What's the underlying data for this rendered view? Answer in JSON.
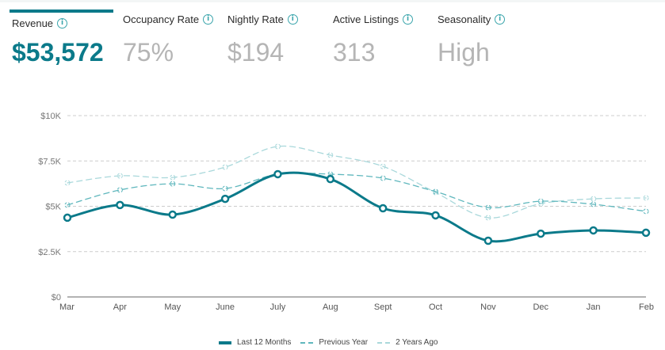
{
  "kpis": [
    {
      "label": "Revenue",
      "value": "$53,572",
      "active": true
    },
    {
      "label": "Occupancy Rate",
      "value": "75%",
      "active": false
    },
    {
      "label": "Nightly Rate",
      "value": "$194",
      "active": false
    },
    {
      "label": "Active Listings",
      "value": "313",
      "active": false
    },
    {
      "label": "Seasonality",
      "value": "High",
      "active": false
    }
  ],
  "info_icon": "info-circle-icon",
  "colors": {
    "accent": "#0b7a8a",
    "prev": "#5fb7bd",
    "two": "#a9d8db",
    "grid": "#cccccc",
    "muted": "#b5b5b5"
  },
  "chart_data": {
    "type": "line",
    "categories": [
      "Mar",
      "Apr",
      "May",
      "June",
      "July",
      "Aug",
      "Sept",
      "Oct",
      "Nov",
      "Dec",
      "Jan",
      "Feb"
    ],
    "y_ticks": [
      "$0",
      "$2.5K",
      "$5K",
      "$7.5K",
      "$10K"
    ],
    "y_tick_values": [
      0,
      2500,
      5000,
      7500,
      10000
    ],
    "ylim": [
      0,
      10000
    ],
    "grid": true,
    "legend_position": "bottom",
    "series": [
      {
        "name": "Last 12 Months",
        "values": [
          4370,
          5070,
          4540,
          5410,
          6770,
          6500,
          4890,
          4500,
          3100,
          3490,
          3670,
          3540
        ]
      },
      {
        "name": "Previous Year",
        "values": [
          5070,
          5900,
          6240,
          5980,
          6770,
          6770,
          6550,
          5810,
          4930,
          5280,
          5110,
          4720
        ]
      },
      {
        "name": "2 Years Ago",
        "values": [
          6290,
          6680,
          6590,
          7160,
          8300,
          7820,
          7200,
          5760,
          4370,
          5150,
          5410,
          5460
        ]
      }
    ]
  }
}
